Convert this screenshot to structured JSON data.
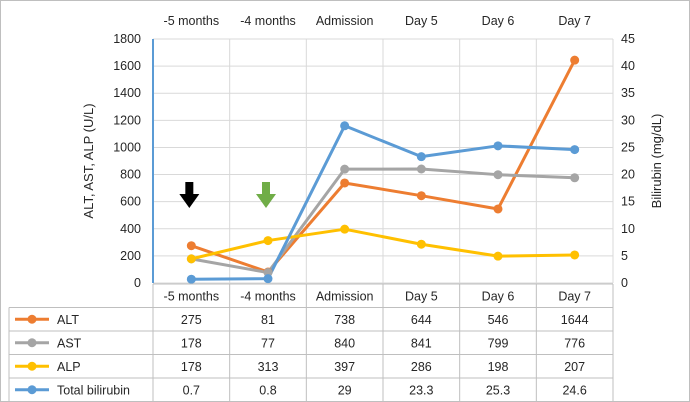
{
  "chart_data": {
    "type": "line",
    "categories": [
      "-5 months",
      "-4 months",
      "Admission",
      "Day 5",
      "Day 6",
      "Day 7"
    ],
    "y_left": {
      "label": "ALT, AST, ALP (U/L)",
      "min": 0,
      "max": 1800,
      "step": 200
    },
    "y_right": {
      "label": "Bilirubin (mg/dL)",
      "min": 0,
      "max": 45,
      "step": 5
    },
    "series": [
      {
        "name": "ALT",
        "axis": "left",
        "color": "#ed7d31",
        "values": [
          275,
          81,
          738,
          644,
          546,
          1644
        ],
        "labels": [
          "275",
          "81",
          "738",
          "644",
          "546",
          "1644"
        ]
      },
      {
        "name": "AST",
        "axis": "left",
        "color": "#a5a5a5",
        "values": [
          178,
          77,
          840,
          841,
          799,
          776
        ],
        "labels": [
          "178",
          "77",
          "840",
          "841",
          "799",
          "776"
        ]
      },
      {
        "name": "ALP",
        "axis": "left",
        "color": "#ffc000",
        "values": [
          178,
          313,
          397,
          286,
          198,
          207
        ],
        "labels": [
          "178",
          "313",
          "397",
          "286",
          "198",
          "207"
        ]
      },
      {
        "name": "Total bilirubin",
        "axis": "right",
        "color": "#5b9bd5",
        "values": [
          0.7,
          0.8,
          29,
          23.3,
          25.3,
          24.6
        ],
        "labels": [
          "0.7",
          "0.8",
          "29",
          "23.3",
          "25.3",
          "24.6"
        ]
      }
    ],
    "markers": [
      {
        "category": "-5 months",
        "shape": "arrow-down",
        "color": "#000000"
      },
      {
        "category": "-4 months",
        "shape": "arrow-down",
        "color": "#70ad47"
      }
    ],
    "grid": true,
    "legend": "table-below"
  }
}
